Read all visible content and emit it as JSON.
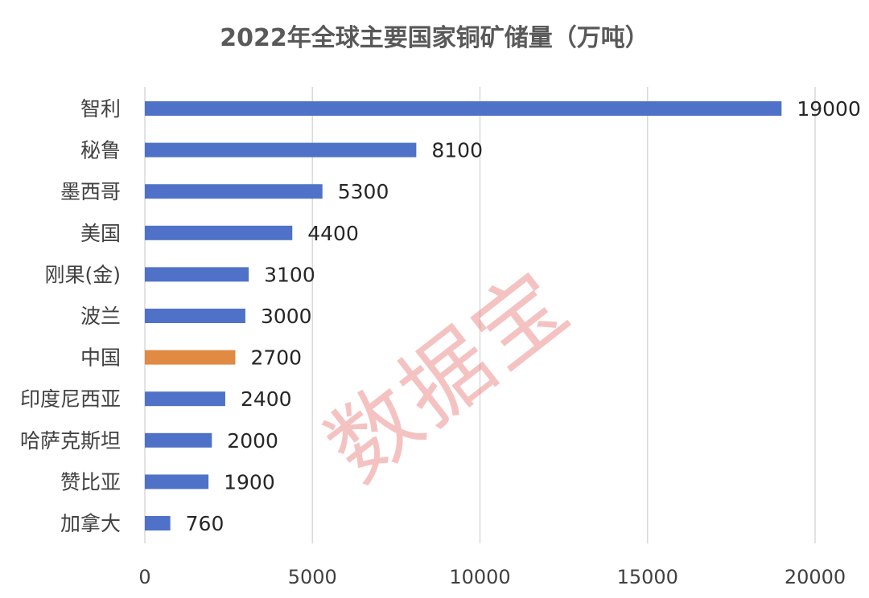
{
  "chart_data": {
    "type": "bar",
    "orientation": "horizontal",
    "title": "2022年全球主要国家铜矿储量（万吨）",
    "categories": [
      "智利",
      "秘鲁",
      "墨西哥",
      "美国",
      "刚果(金)",
      "波兰",
      "中国",
      "印度尼西亚",
      "哈萨克斯坦",
      "赞比亚",
      "加拿大"
    ],
    "values": [
      19000,
      8100,
      5300,
      4400,
      3100,
      3000,
      2700,
      2400,
      2000,
      1900,
      760
    ],
    "value_labels": [
      "19000",
      "8100",
      "5300",
      "4400",
      "3100",
      "3000",
      "2700",
      "2400",
      "2000",
      "1900",
      "760"
    ],
    "xlim": [
      0,
      20000
    ],
    "xticks": [
      0,
      5000,
      10000,
      15000,
      20000
    ],
    "xtick_labels": [
      "0",
      "5000",
      "10000",
      "15000",
      "20000"
    ],
    "grid": "vertical",
    "legend": "none",
    "highlight_category": "中国",
    "colors": {
      "bar": "#4f72c8",
      "highlight": "#e08a43"
    }
  },
  "watermark": "数据宝"
}
